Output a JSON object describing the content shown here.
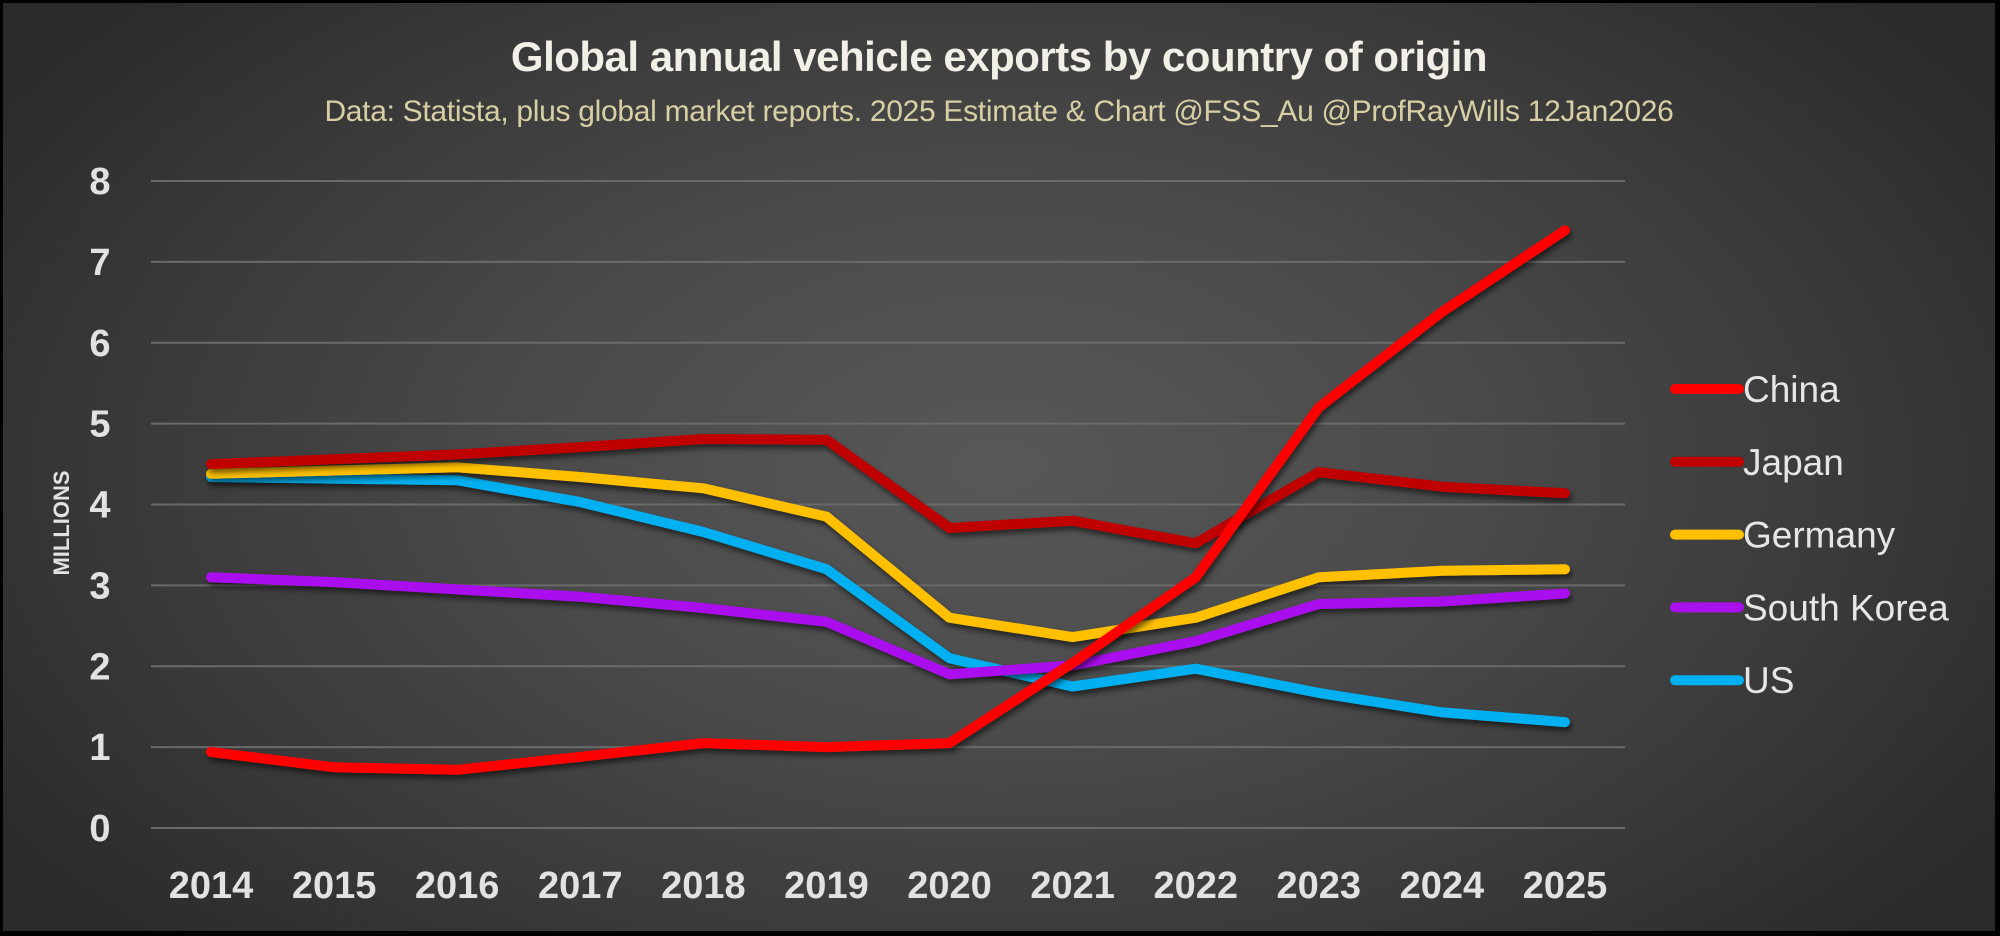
{
  "chart_data": {
    "type": "line",
    "title": "Global annual vehicle exports by country of origin",
    "subtitle": "Data: Statista, plus global market reports.  2025 Estimate & Chart @FSS_Au @ProfRayWills 12Jan2026",
    "xlabel": "",
    "ylabel": "MILLIONS",
    "ylim": [
      0,
      8
    ],
    "yticks": [
      "0",
      "1",
      "2",
      "3",
      "4",
      "5",
      "6",
      "7",
      "8"
    ],
    "grid": true,
    "legend_position": "right",
    "categories": [
      "2014",
      "2015",
      "2016",
      "2017",
      "2018",
      "2019",
      "2020",
      "2021",
      "2022",
      "2023",
      "2024",
      "2025"
    ],
    "series": [
      {
        "name": "China",
        "color": "#ff0000",
        "values": [
          0.94,
          0.75,
          0.72,
          0.88,
          1.05,
          1.0,
          1.05,
          2.04,
          3.1,
          5.2,
          6.38,
          7.39
        ]
      },
      {
        "name": "Japan",
        "color": "#c00000",
        "values": [
          4.5,
          4.56,
          4.62,
          4.71,
          4.81,
          4.8,
          3.71,
          3.8,
          3.52,
          4.4,
          4.22,
          4.14
        ]
      },
      {
        "name": "Germany",
        "color": "#ffc000",
        "values": [
          4.38,
          4.42,
          4.46,
          4.34,
          4.2,
          3.85,
          2.6,
          2.36,
          2.6,
          3.1,
          3.18,
          3.2
        ]
      },
      {
        "name": "South Korea",
        "color": "#aa10ee",
        "values": [
          3.1,
          3.04,
          2.95,
          2.86,
          2.72,
          2.55,
          1.9,
          2.01,
          2.31,
          2.77,
          2.8,
          2.9
        ]
      },
      {
        "name": "US",
        "color": "#00b0f0",
        "values": [
          4.34,
          4.32,
          4.3,
          4.03,
          3.66,
          3.2,
          2.1,
          1.75,
          1.97,
          1.67,
          1.43,
          1.31
        ]
      }
    ]
  }
}
